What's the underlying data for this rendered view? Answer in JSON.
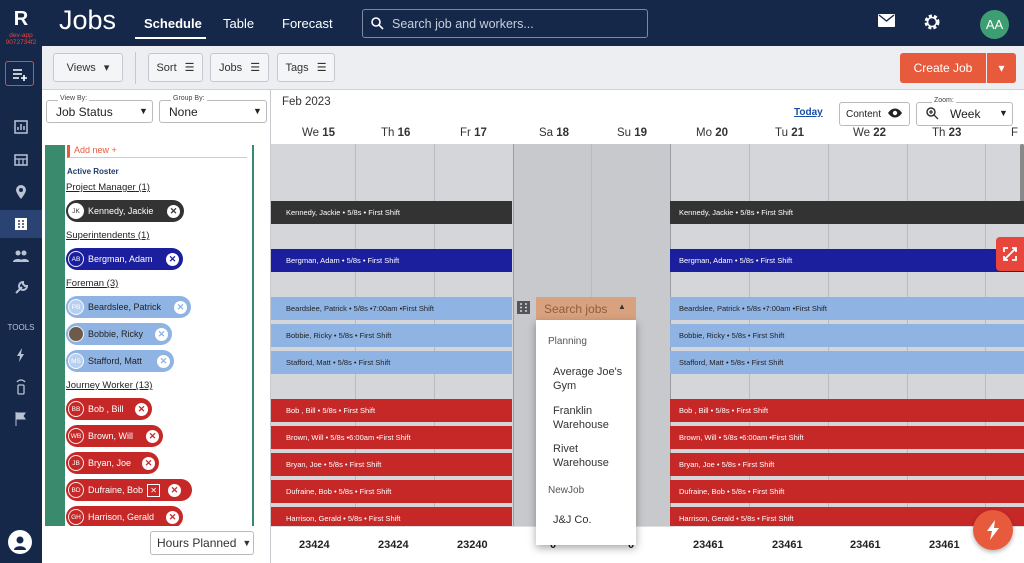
{
  "app": {
    "logo": "R",
    "env": "dev-app 9072734f2",
    "title": "Jobs"
  },
  "tabs": [
    {
      "label": "Schedule"
    },
    {
      "label": "Table"
    },
    {
      "label": "Forecast"
    }
  ],
  "search": {
    "placeholder": "Search job and workers..."
  },
  "user": {
    "initials": "AA"
  },
  "toolbar": {
    "views": "Views",
    "sort": "Sort",
    "jobs": "Jobs",
    "tags": "Tags",
    "create": "Create Job"
  },
  "filters": {
    "view_by_label": "View By:",
    "view_by_value": "Job Status",
    "group_by_label": "Group By:",
    "group_by_value": "None"
  },
  "calendar": {
    "month": "Feb 2023",
    "today": "Today",
    "content": "Content",
    "zoom_label": "Zoom:",
    "zoom_value": "Week",
    "days": [
      {
        "d": "We",
        "n": "15"
      },
      {
        "d": "Th",
        "n": "16"
      },
      {
        "d": "Fr",
        "n": "17"
      },
      {
        "d": "Sa",
        "n": "18"
      },
      {
        "d": "Su",
        "n": "19"
      },
      {
        "d": "Mo",
        "n": "20"
      },
      {
        "d": "Tu",
        "n": "21"
      },
      {
        "d": "We",
        "n": "22"
      },
      {
        "d": "Th",
        "n": "23"
      },
      {
        "d": "F",
        "n": ""
      }
    ],
    "totals": [
      "23424",
      "23424",
      "23240",
      "0",
      "0",
      "23461",
      "23461",
      "23461",
      "23461"
    ]
  },
  "roster": {
    "add_new": "Add new +",
    "active_title": "Active Roster",
    "groups": [
      {
        "name": "Project Manager",
        "count": "(1)"
      },
      {
        "name": "Superintendents",
        "count": "(1)"
      },
      {
        "name": "Foreman",
        "count": "(3)"
      },
      {
        "name": "Journey Worker",
        "count": "(13)"
      }
    ],
    "people": [
      {
        "initials": "JK",
        "name": "Kennedy, Jackie",
        "color": "#333333"
      },
      {
        "initials": "AB",
        "name": "Bergman, Adam",
        "color": "#1b1f9e"
      },
      {
        "initials": "PB",
        "name": "Beardslee, Patrick",
        "color": "#8fb3e3"
      },
      {
        "initials": "",
        "name": "Bobbie, Ricky",
        "color": "#8fb3e3"
      },
      {
        "initials": "MS",
        "name": "Stafford, Matt",
        "color": "#8fb3e3"
      },
      {
        "initials": "BB",
        "name": "Bob , Bill",
        "color": "#c62828"
      },
      {
        "initials": "WB",
        "name": "Brown, Will",
        "color": "#c62828"
      },
      {
        "initials": "JB",
        "name": "Bryan, Joe",
        "color": "#c62828"
      },
      {
        "initials": "BD",
        "name": "Dufraine, Bob",
        "color": "#c62828"
      },
      {
        "initials": "GH",
        "name": "Harrison, Gerald",
        "color": "#c62828"
      }
    ],
    "hours_select": "Hours Planned"
  },
  "shifts": [
    {
      "label": "Kennedy, Jackie • 5/8s • First Shift",
      "color": "#333333"
    },
    {
      "label": "Bergman, Adam • 5/8s • First Shift",
      "color": "#1b1f9e"
    },
    {
      "label": "Beardslee, Patrick • 5/8s •7:00am •First Shift",
      "color": "#8fb3e3"
    },
    {
      "label": "Bobbie, Ricky • 5/8s • First Shift",
      "color": "#8fb3e3"
    },
    {
      "label": "Stafford, Matt • 5/8s • First Shift",
      "color": "#8fb3e3"
    },
    {
      "label": "Bob , Bill • 5/8s • First Shift",
      "color": "#c62828"
    },
    {
      "label": "Brown, Will • 5/8s •6:00am •First Shift",
      "color": "#c62828"
    },
    {
      "label": "Bryan, Joe • 5/8s • First Shift",
      "color": "#c62828"
    },
    {
      "label": "Dufraine, Bob • 5/8s • First Shift",
      "color": "#c62828"
    },
    {
      "label": "Harrison, Gerald • 5/8s • First Shift",
      "color": "#c62828"
    }
  ],
  "job_dropdown": {
    "placeholder": "Search jobs",
    "group1": "Planning",
    "item1": "Average Joe's Gym",
    "item2": "Franklin Warehouse",
    "item3": "Rivet Warehouse",
    "group2": "NewJob",
    "item4": "J&J Co."
  },
  "sidebar": {
    "tools_label": "TOOLS"
  }
}
